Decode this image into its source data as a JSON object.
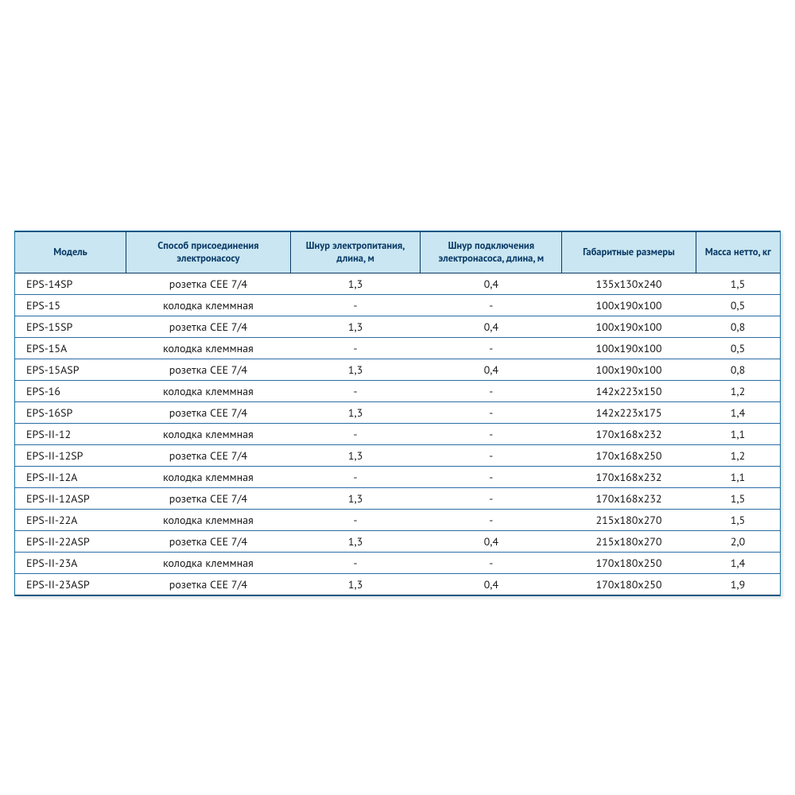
{
  "table": {
    "type": "table",
    "header_bg": "#c9e6f2",
    "header_text_color": "#0a3a66",
    "border_color": "#0a3a66",
    "row_border_color": "#2b6ca3",
    "background_color": "#ffffff",
    "header_fontsize": 12.5,
    "cell_fontsize": 14,
    "columns": [
      {
        "label": "Модель",
        "align": "left",
        "width_pct": 14.5
      },
      {
        "label": "Способ присоединения электронасосу",
        "align": "center",
        "width_pct": 21.5
      },
      {
        "label": "Шнур электропитания, длина, м",
        "align": "center",
        "width_pct": 17
      },
      {
        "label": "Шнур подключения электронасоса, длина, м",
        "align": "center",
        "width_pct": 18.5
      },
      {
        "label": "Габаритные размеры",
        "align": "center",
        "width_pct": 17.5
      },
      {
        "label": "Масса нетто, кг",
        "align": "center",
        "width_pct": 11
      }
    ],
    "rows": [
      [
        "EPS-14SP",
        "розетка СЕЕ 7/4",
        "1,3",
        "0,4",
        "135х130х240",
        "1,5"
      ],
      [
        "EPS-15",
        "колодка клеммная",
        "-",
        "-",
        "100х190х100",
        "0,5"
      ],
      [
        "EPS-15SP",
        "розетка СЕЕ 7/4",
        "1,3",
        "0,4",
        "100х190х100",
        "0,8"
      ],
      [
        "EPS-15A",
        "колодка клеммная",
        "-",
        "-",
        "100х190х100",
        "0,5"
      ],
      [
        "EPS-15ASP",
        "розетка СЕЕ 7/4",
        "1,3",
        "0,4",
        "100х190х100",
        "0,8"
      ],
      [
        "EPS-16",
        "колодка клеммная",
        "-",
        "-",
        "142х223х150",
        "1,2"
      ],
      [
        "EPS-16SP",
        "розетка СЕЕ 7/4",
        "1,3",
        "-",
        "142х223х175",
        "1,4"
      ],
      [
        "EPS-II-12",
        "колодка клеммная",
        "-",
        "-",
        "170х168х232",
        "1,1"
      ],
      [
        "EPS-II-12SP",
        "розетка СЕЕ 7/4",
        "1,3",
        "-",
        "170х168х250",
        "1,2"
      ],
      [
        "EPS-II-12A",
        "колодка клеммная",
        "-",
        "-",
        "170х168х232",
        "1,1"
      ],
      [
        "EPS-II-12ASP",
        "розетка СЕЕ 7/4",
        "1,3",
        "-",
        "170х168х232",
        "1,5"
      ],
      [
        "EPS-II-22A",
        "колодка клеммная",
        "-",
        "-",
        "215х180х270",
        "1,5"
      ],
      [
        "EPS-II-22ASP",
        "розетка СЕЕ 7/4",
        "1,3",
        "0,4",
        "215х180х270",
        "2,0"
      ],
      [
        "EPS-II-23A",
        "колодка клеммная",
        "-",
        "-",
        "170х180х250",
        "1,4"
      ],
      [
        "EPS-II-23ASP",
        "розетка СЕЕ 7/4",
        "1,3",
        "0,4",
        "170х180х250",
        "1,9"
      ]
    ]
  }
}
